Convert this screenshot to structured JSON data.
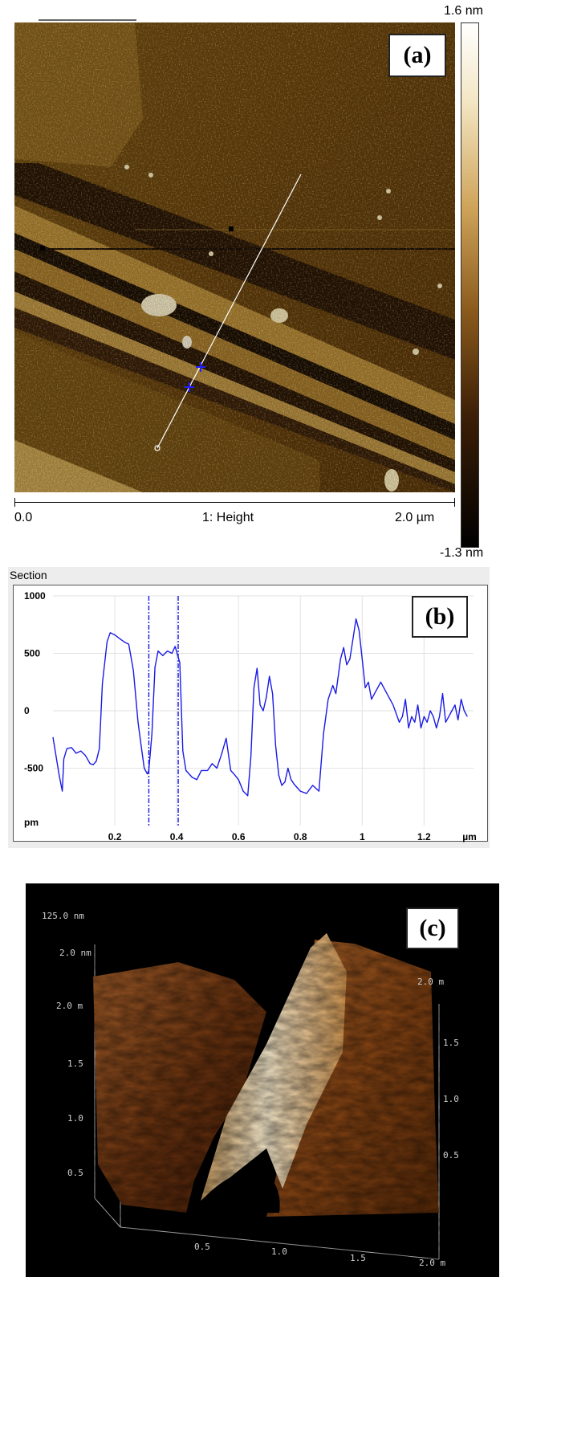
{
  "panel_a": {
    "label": "(a)",
    "colorbar_max": "1.6 nm",
    "colorbar_min": "-1.3 nm",
    "x_start": "0.0",
    "x_end": "2.0 µm",
    "channel": "1: Height"
  },
  "panel_b": {
    "header": "Section",
    "label": "(b)",
    "x_unit": "µm",
    "y_unit": "pm"
  },
  "panel_c": {
    "label": "(c)",
    "z_scale": "125.0 nm",
    "z_tick": "2.0 nm",
    "left_axis_top": "2.0 m",
    "right_axis_top": "2.0 m",
    "left_ticks": [
      "1.5",
      "1.0",
      "0.5"
    ],
    "right_ticks": [
      "1.5",
      "1.0",
      "0.5"
    ],
    "bottom_ticks": [
      "0.5",
      "1.0",
      "1.5",
      "2.0 m"
    ]
  },
  "chart_data": {
    "type": "line",
    "title": "",
    "xlabel": "µm",
    "ylabel": "pm",
    "xlim": [
      0,
      1.36
    ],
    "ylim": [
      -1000,
      1000
    ],
    "xticks": [
      0.2,
      0.4,
      0.6,
      0.8,
      1,
      1.2
    ],
    "yticks": [
      1000,
      500,
      0,
      -500
    ],
    "grid": true,
    "cursor_x": [
      0.31,
      0.405
    ],
    "series": [
      {
        "color": "#1a1ae6",
        "x": [
          0.0,
          0.02,
          0.03,
          0.035,
          0.045,
          0.06,
          0.075,
          0.09,
          0.105,
          0.12,
          0.13,
          0.14,
          0.15,
          0.16,
          0.175,
          0.185,
          0.2,
          0.215,
          0.23,
          0.245,
          0.26,
          0.275,
          0.285,
          0.295,
          0.305,
          0.31,
          0.32,
          0.33,
          0.34,
          0.355,
          0.37,
          0.385,
          0.395,
          0.41,
          0.42,
          0.43,
          0.45,
          0.465,
          0.48,
          0.5,
          0.515,
          0.53,
          0.545,
          0.56,
          0.575,
          0.585,
          0.6,
          0.615,
          0.63,
          0.64,
          0.65,
          0.66,
          0.67,
          0.68,
          0.69,
          0.7,
          0.71,
          0.72,
          0.73,
          0.74,
          0.75,
          0.76,
          0.77,
          0.78,
          0.8,
          0.82,
          0.84,
          0.86,
          0.875,
          0.89,
          0.905,
          0.915,
          0.93,
          0.94,
          0.95,
          0.96,
          0.97,
          0.98,
          0.99,
          1.0,
          1.01,
          1.02,
          1.03,
          1.04,
          1.05,
          1.06,
          1.08,
          1.1,
          1.12,
          1.13,
          1.14,
          1.15,
          1.16,
          1.17,
          1.18,
          1.19,
          1.2,
          1.21,
          1.22,
          1.23,
          1.24,
          1.25,
          1.26,
          1.27,
          1.28,
          1.29,
          1.3,
          1.31,
          1.32,
          1.33,
          1.34
        ],
        "y": [
          -230,
          -560,
          -700,
          -420,
          -330,
          -320,
          -370,
          -350,
          -390,
          -460,
          -470,
          -440,
          -330,
          240,
          600,
          680,
          660,
          630,
          600,
          580,
          350,
          -100,
          -300,
          -500,
          -550,
          -520,
          -200,
          380,
          520,
          480,
          520,
          500,
          560,
          420,
          -350,
          -520,
          -580,
          -600,
          -520,
          -520,
          -460,
          -500,
          -380,
          -240,
          -520,
          -550,
          -600,
          -700,
          -740,
          -400,
          200,
          370,
          50,
          0,
          120,
          300,
          150,
          -300,
          -560,
          -650,
          -620,
          -500,
          -600,
          -640,
          -700,
          -720,
          -650,
          -700,
          -200,
          100,
          220,
          150,
          450,
          550,
          400,
          450,
          620,
          800,
          700,
          450,
          200,
          250,
          100,
          150,
          200,
          250,
          150,
          50,
          -100,
          -50,
          100,
          -150,
          -50,
          -100,
          50,
          -150,
          -50,
          -100,
          0,
          -50,
          -150,
          -50,
          150,
          -100,
          -50,
          0,
          50,
          -80,
          100,
          0,
          -50
        ]
      }
    ]
  }
}
